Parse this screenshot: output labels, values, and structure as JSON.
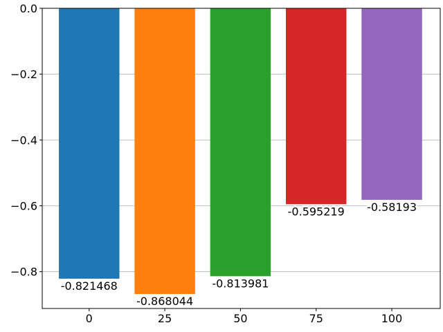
{
  "chart_data": {
    "type": "bar",
    "title": "",
    "xlabel": "",
    "ylabel": "",
    "categories": [
      "0",
      "25",
      "50",
      "75",
      "100"
    ],
    "x": [
      0,
      25,
      50,
      75,
      100
    ],
    "values": [
      -0.821468,
      -0.868044,
      -0.813981,
      -0.595219,
      -0.58193
    ],
    "value_labels": [
      "-0.821468",
      "-0.868044",
      "-0.813981",
      "-0.595219",
      "-0.58193"
    ],
    "colors": [
      "#1f77b4",
      "#ff7f0e",
      "#2ca02c",
      "#d62728",
      "#9467bd"
    ],
    "bar_width": 20,
    "xlim": [
      -15.5,
      116
    ],
    "ylim": [
      -0.912,
      0.0
    ],
    "yticks": [
      0.0,
      -0.2,
      -0.4,
      -0.6,
      -0.8
    ],
    "ytick_labels": [
      "0.0",
      "−0.2",
      "−0.4",
      "−0.6",
      "−0.8"
    ],
    "xticks": [
      0,
      25,
      50,
      75,
      100
    ],
    "xtick_labels": [
      "0",
      "25",
      "50",
      "75",
      "100"
    ],
    "grid": "y-axis horizontal gridlines",
    "legend": "none"
  }
}
